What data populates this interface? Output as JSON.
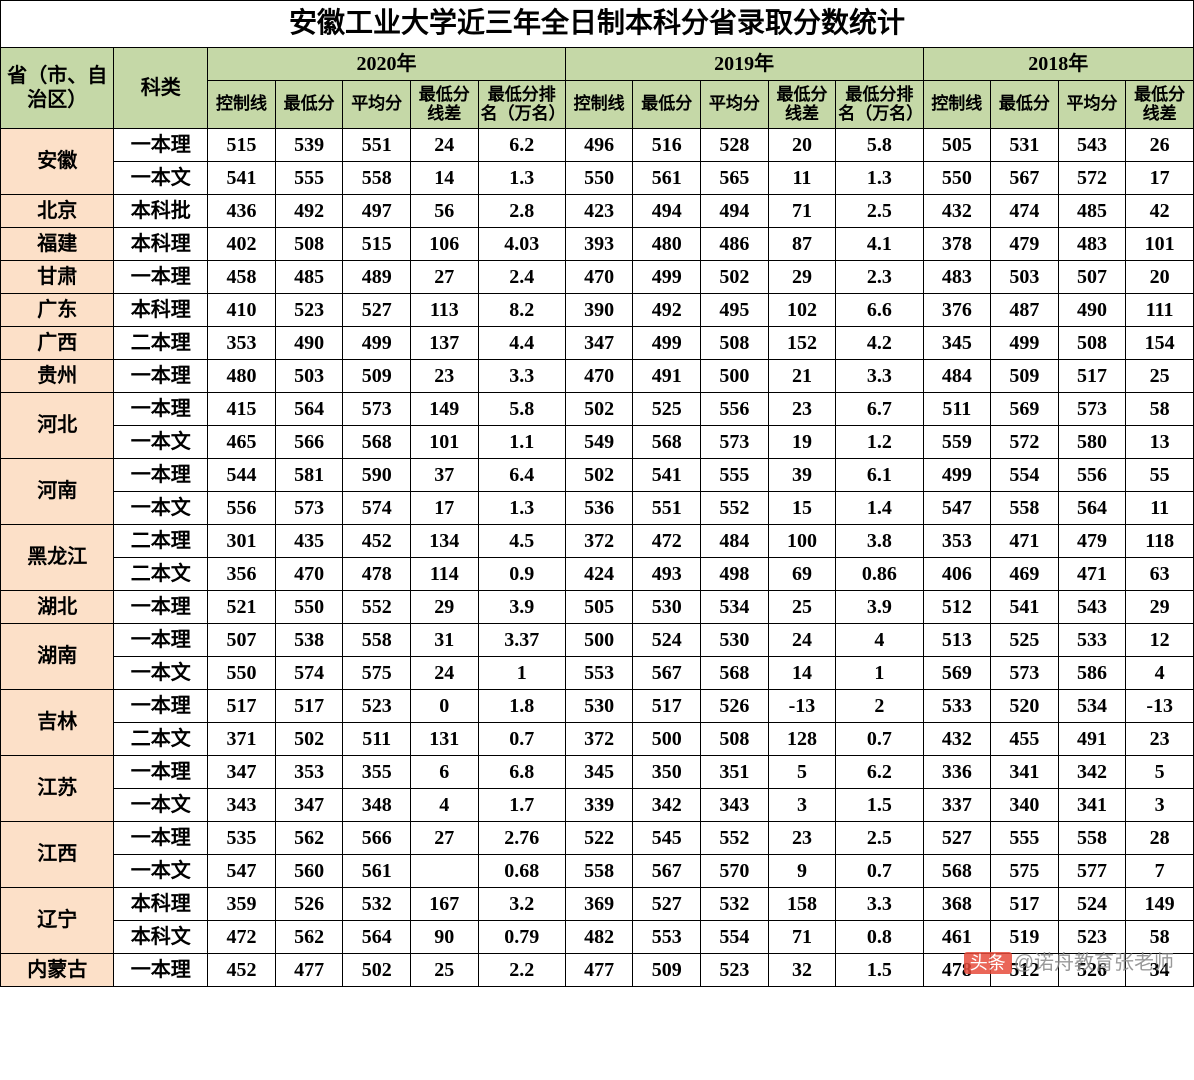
{
  "title": "安徽工业大学近三年全日制本科分省录取分数统计",
  "headers": {
    "province": "省（市、自治区）",
    "category": "科类",
    "y2020": "2020年",
    "y2019": "2019年",
    "y2018": "2018年",
    "ctrl": "控制线",
    "min": "最低分",
    "avg": "平均分",
    "diff": "最低分线差",
    "rank": "最低分排名（万名）",
    "rank2": "最低分排名（万名）"
  },
  "provinces": [
    {
      "name": "安徽",
      "rows": [
        {
          "t": "一本理",
          "d": [
            515,
            539,
            551,
            24,
            "6.2",
            496,
            516,
            528,
            20,
            "5.8",
            505,
            531,
            543,
            26
          ]
        },
        {
          "t": "一本文",
          "d": [
            541,
            555,
            558,
            14,
            "1.3",
            550,
            561,
            565,
            11,
            "1.3",
            550,
            567,
            572,
            17
          ]
        }
      ]
    },
    {
      "name": "北京",
      "rows": [
        {
          "t": "本科批",
          "d": [
            436,
            492,
            497,
            56,
            "2.8",
            423,
            494,
            494,
            71,
            "2.5",
            432,
            474,
            485,
            42
          ]
        }
      ]
    },
    {
      "name": "福建",
      "rows": [
        {
          "t": "本科理",
          "d": [
            402,
            508,
            515,
            106,
            "4.03",
            393,
            480,
            486,
            87,
            "4.1",
            378,
            479,
            483,
            101
          ]
        }
      ]
    },
    {
      "name": "甘肃",
      "rows": [
        {
          "t": "一本理",
          "d": [
            458,
            485,
            489,
            27,
            "2.4",
            470,
            499,
            502,
            29,
            "2.3",
            483,
            503,
            507,
            20
          ]
        }
      ]
    },
    {
      "name": "广东",
      "rows": [
        {
          "t": "本科理",
          "d": [
            410,
            523,
            527,
            113,
            "8.2",
            390,
            492,
            495,
            102,
            "6.6",
            376,
            487,
            490,
            111
          ]
        }
      ]
    },
    {
      "name": "广西",
      "rows": [
        {
          "t": "二本理",
          "d": [
            353,
            490,
            499,
            137,
            "4.4",
            347,
            499,
            508,
            152,
            "4.2",
            345,
            499,
            508,
            154
          ]
        }
      ]
    },
    {
      "name": "贵州",
      "rows": [
        {
          "t": "一本理",
          "d": [
            480,
            503,
            509,
            23,
            "3.3",
            470,
            491,
            500,
            21,
            "3.3",
            484,
            509,
            517,
            25
          ]
        }
      ]
    },
    {
      "name": "河北",
      "rows": [
        {
          "t": "一本理",
          "d": [
            415,
            564,
            573,
            149,
            "5.8",
            502,
            525,
            556,
            23,
            "6.7",
            511,
            569,
            573,
            58
          ]
        },
        {
          "t": "一本文",
          "d": [
            465,
            566,
            568,
            101,
            "1.1",
            549,
            568,
            573,
            19,
            "1.2",
            559,
            572,
            580,
            13
          ]
        }
      ]
    },
    {
      "name": "河南",
      "rows": [
        {
          "t": "一本理",
          "d": [
            544,
            581,
            590,
            37,
            "6.4",
            502,
            541,
            555,
            39,
            "6.1",
            499,
            554,
            556,
            55
          ]
        },
        {
          "t": "一本文",
          "d": [
            556,
            573,
            574,
            17,
            "1.3",
            536,
            551,
            552,
            15,
            "1.4",
            547,
            558,
            564,
            11
          ]
        }
      ]
    },
    {
      "name": "黑龙江",
      "rows": [
        {
          "t": "二本理",
          "d": [
            301,
            435,
            452,
            134,
            "4.5",
            372,
            472,
            484,
            100,
            "3.8",
            353,
            471,
            479,
            118
          ]
        },
        {
          "t": "二本文",
          "d": [
            356,
            470,
            478,
            114,
            "0.9",
            424,
            493,
            498,
            69,
            "0.86",
            406,
            469,
            471,
            63
          ]
        }
      ]
    },
    {
      "name": "湖北",
      "rows": [
        {
          "t": "一本理",
          "d": [
            521,
            550,
            552,
            29,
            "3.9",
            505,
            530,
            534,
            25,
            "3.9",
            512,
            541,
            543,
            29
          ]
        }
      ]
    },
    {
      "name": "湖南",
      "rows": [
        {
          "t": "一本理",
          "d": [
            507,
            538,
            558,
            31,
            "3.37",
            500,
            524,
            530,
            24,
            "4",
            513,
            525,
            533,
            12
          ]
        },
        {
          "t": "一本文",
          "d": [
            550,
            574,
            575,
            24,
            "1",
            553,
            567,
            568,
            14,
            "1",
            569,
            573,
            586,
            4
          ]
        }
      ]
    },
    {
      "name": "吉林",
      "rows": [
        {
          "t": "一本理",
          "d": [
            517,
            517,
            523,
            0,
            "1.8",
            530,
            517,
            526,
            -13,
            "2",
            533,
            520,
            534,
            -13
          ]
        },
        {
          "t": "二本文",
          "d": [
            371,
            502,
            511,
            131,
            "0.7",
            372,
            500,
            508,
            128,
            "0.7",
            432,
            455,
            491,
            23
          ]
        }
      ]
    },
    {
      "name": "江苏",
      "rows": [
        {
          "t": "一本理",
          "d": [
            347,
            353,
            355,
            6,
            "6.8",
            345,
            350,
            351,
            5,
            "6.2",
            336,
            341,
            342,
            5
          ]
        },
        {
          "t": "一本文",
          "d": [
            343,
            347,
            348,
            4,
            "1.7",
            339,
            342,
            343,
            3,
            "1.5",
            337,
            340,
            341,
            3
          ]
        }
      ]
    },
    {
      "name": "江西",
      "rows": [
        {
          "t": "一本理",
          "d": [
            535,
            562,
            566,
            27,
            "2.76",
            522,
            545,
            552,
            23,
            "2.5",
            527,
            555,
            558,
            28
          ]
        },
        {
          "t": "一本文",
          "d": [
            547,
            560,
            561,
            "",
            "0.68",
            558,
            567,
            570,
            9,
            "0.7",
            568,
            575,
            577,
            7
          ]
        }
      ]
    },
    {
      "name": "辽宁",
      "rows": [
        {
          "t": "本科理",
          "d": [
            359,
            526,
            532,
            167,
            "3.2",
            369,
            527,
            532,
            158,
            "3.3",
            368,
            517,
            524,
            149
          ]
        },
        {
          "t": "本科文",
          "d": [
            472,
            562,
            564,
            90,
            "0.79",
            482,
            553,
            554,
            71,
            "0.8",
            461,
            519,
            523,
            58
          ]
        }
      ]
    },
    {
      "name": "内蒙古",
      "rows": [
        {
          "t": "一本理",
          "d": [
            452,
            477,
            502,
            25,
            "2.2",
            477,
            509,
            523,
            32,
            "1.5",
            478,
            512,
            526,
            34
          ]
        }
      ]
    }
  ],
  "watermark": "头条@诺舟教育张老师"
}
